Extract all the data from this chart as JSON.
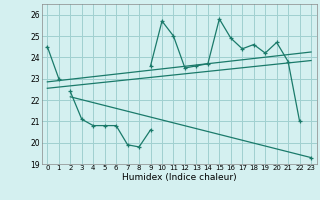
{
  "title": "",
  "xlabel": "Humidex (Indice chaleur)",
  "bg_color": "#d4f0f0",
  "grid_color": "#a0d0d0",
  "line_color": "#1a7a6a",
  "xlim": [
    -0.5,
    23.5
  ],
  "ylim": [
    19,
    26.5
  ],
  "yticks": [
    19,
    20,
    21,
    22,
    23,
    24,
    25,
    26
  ],
  "xticks": [
    0,
    1,
    2,
    3,
    4,
    5,
    6,
    7,
    8,
    9,
    10,
    11,
    12,
    13,
    14,
    15,
    16,
    17,
    18,
    19,
    20,
    21,
    22,
    23
  ],
  "series1": [
    24.5,
    23.0,
    null,
    null,
    null,
    null,
    null,
    null,
    null,
    23.6,
    25.7,
    25.0,
    23.5,
    23.6,
    23.7,
    25.8,
    24.9,
    24.4,
    24.6,
    24.2,
    24.7,
    23.8,
    21.0,
    null
  ],
  "series2": [
    null,
    null,
    22.4,
    21.1,
    20.8,
    20.8,
    20.8,
    19.9,
    19.8,
    20.6,
    null,
    null,
    null,
    null,
    null,
    null,
    null,
    null,
    null,
    null,
    null,
    null,
    null,
    19.3
  ],
  "trend1_x": [
    0,
    23
  ],
  "trend1_y": [
    22.85,
    24.25
  ],
  "trend2_x": [
    0,
    23
  ],
  "trend2_y": [
    22.55,
    23.85
  ],
  "trend3_x": [
    2,
    23
  ],
  "trend3_y": [
    22.15,
    19.3
  ]
}
